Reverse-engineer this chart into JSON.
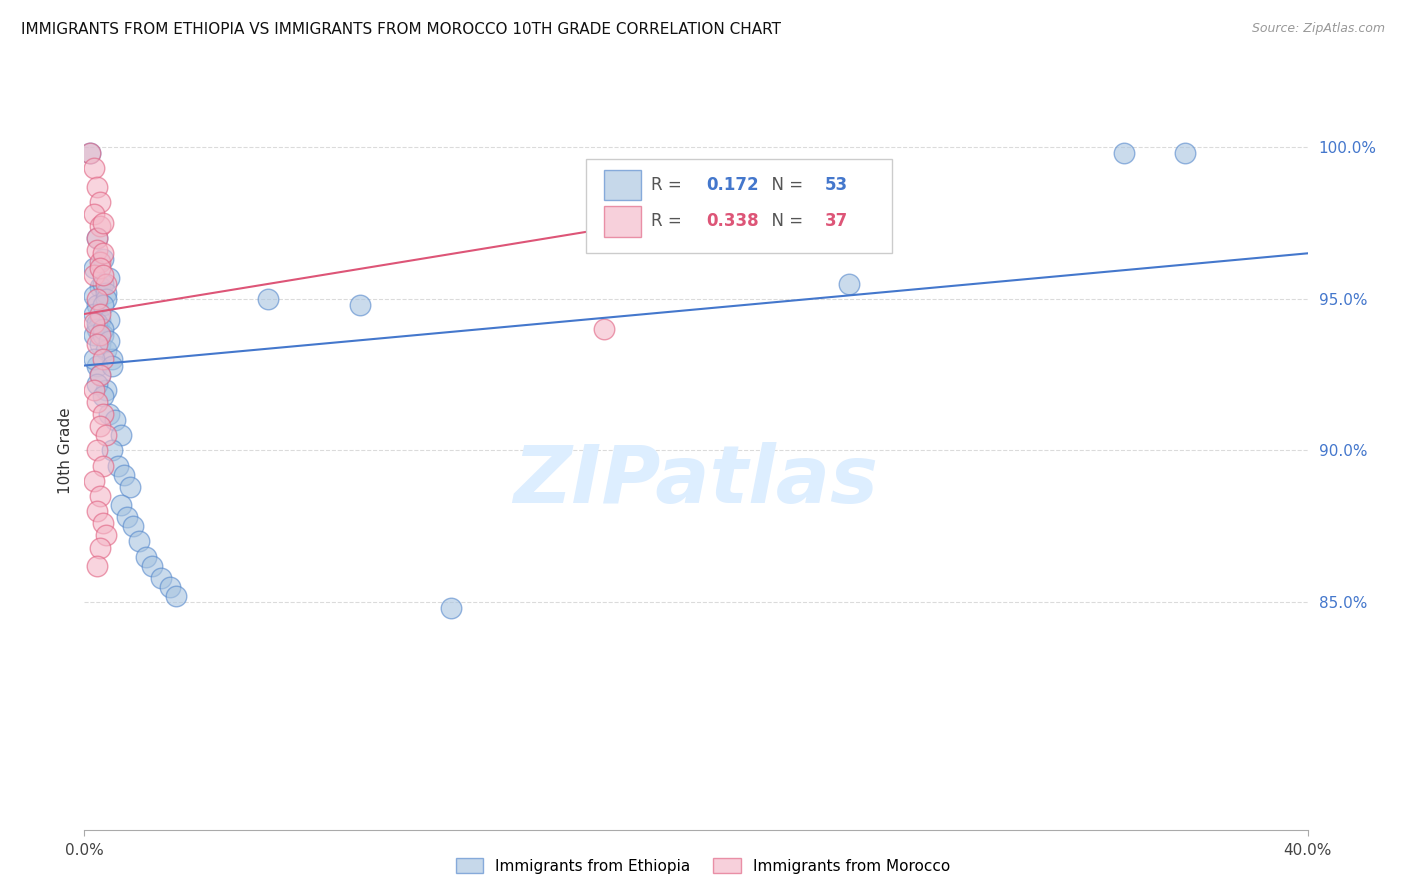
{
  "title": "IMMIGRANTS FROM ETHIOPIA VS IMMIGRANTS FROM MOROCCO 10TH GRADE CORRELATION CHART",
  "source": "Source: ZipAtlas.com",
  "ylabel": "10th Grade",
  "yaxis_ticks": [
    "100.0%",
    "95.0%",
    "90.0%",
    "85.0%"
  ],
  "yaxis_values": [
    1.0,
    0.95,
    0.9,
    0.85
  ],
  "xaxis_min": 0.0,
  "xaxis_max": 0.4,
  "yaxis_min": 0.775,
  "yaxis_max": 1.025,
  "legend_blue_r": "0.172",
  "legend_blue_n": "53",
  "legend_pink_r": "0.338",
  "legend_pink_n": "37",
  "blue_color": "#a8c4e0",
  "pink_color": "#f4b8c8",
  "blue_edge_color": "#5588cc",
  "pink_edge_color": "#e06080",
  "blue_line_color": "#4477cc",
  "pink_line_color": "#dd5577",
  "watermark_color": "#ddeeff",
  "blue_points_x": [
    0.002,
    0.004,
    0.006,
    0.003,
    0.008,
    0.005,
    0.003,
    0.006,
    0.004,
    0.007,
    0.003,
    0.005,
    0.007,
    0.004,
    0.006,
    0.008,
    0.003,
    0.005,
    0.004,
    0.006,
    0.007,
    0.009,
    0.004,
    0.006,
    0.008,
    0.003,
    0.005,
    0.007,
    0.009,
    0.004,
    0.006,
    0.008,
    0.01,
    0.012,
    0.009,
    0.011,
    0.013,
    0.015,
    0.012,
    0.014,
    0.016,
    0.018,
    0.02,
    0.022,
    0.025,
    0.028,
    0.03,
    0.06,
    0.09,
    0.25,
    0.34,
    0.36,
    0.12
  ],
  "blue_points_y": [
    0.998,
    0.97,
    0.963,
    0.96,
    0.957,
    0.954,
    0.951,
    0.955,
    0.948,
    0.952,
    0.945,
    0.943,
    0.95,
    0.94,
    0.948,
    0.943,
    0.938,
    0.935,
    0.942,
    0.938,
    0.933,
    0.93,
    0.928,
    0.94,
    0.936,
    0.93,
    0.925,
    0.92,
    0.928,
    0.922,
    0.918,
    0.912,
    0.91,
    0.905,
    0.9,
    0.895,
    0.892,
    0.888,
    0.882,
    0.878,
    0.875,
    0.87,
    0.865,
    0.862,
    0.858,
    0.855,
    0.852,
    0.95,
    0.948,
    0.955,
    0.998,
    0.998,
    0.848
  ],
  "pink_points_x": [
    0.002,
    0.003,
    0.004,
    0.005,
    0.003,
    0.005,
    0.004,
    0.006,
    0.004,
    0.005,
    0.003,
    0.006,
    0.005,
    0.007,
    0.004,
    0.006,
    0.005,
    0.003,
    0.005,
    0.004,
    0.006,
    0.005,
    0.003,
    0.004,
    0.006,
    0.005,
    0.007,
    0.004,
    0.006,
    0.003,
    0.005,
    0.004,
    0.006,
    0.007,
    0.005,
    0.17,
    0.004
  ],
  "pink_points_y": [
    0.998,
    0.993,
    0.987,
    0.982,
    0.978,
    0.974,
    0.97,
    0.975,
    0.966,
    0.962,
    0.958,
    0.965,
    0.96,
    0.955,
    0.95,
    0.958,
    0.945,
    0.942,
    0.938,
    0.935,
    0.93,
    0.925,
    0.92,
    0.916,
    0.912,
    0.908,
    0.905,
    0.9,
    0.895,
    0.89,
    0.885,
    0.88,
    0.876,
    0.872,
    0.868,
    0.94,
    0.862
  ],
  "blue_line_x": [
    0.0,
    0.4
  ],
  "blue_line_y": [
    0.928,
    0.965
  ],
  "pink_line_x": [
    0.0,
    0.2
  ],
  "pink_line_y": [
    0.945,
    0.978
  ],
  "xtick_positions": [
    0.0,
    0.4
  ],
  "xtick_labels": [
    "0.0%",
    "40.0%"
  ]
}
